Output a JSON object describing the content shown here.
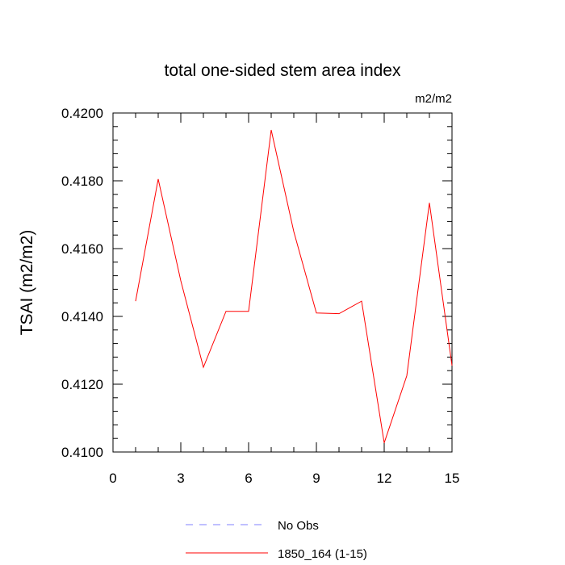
{
  "chart_data": {
    "type": "line",
    "title": "total one-sided stem area index",
    "units_label": "m2/m2",
    "xlabel": "",
    "ylabel": "TSAI  (m2/m2)",
    "xlim": [
      0,
      15
    ],
    "ylim": [
      0.41,
      0.42
    ],
    "x_ticks": [
      0,
      3,
      6,
      9,
      12,
      15
    ],
    "x_tick_labels": [
      "0",
      "3",
      "6",
      "9",
      "12",
      "15"
    ],
    "y_ticks": [
      0.41,
      0.412,
      0.414,
      0.416,
      0.418,
      0.42
    ],
    "y_tick_labels": [
      "0.4100",
      "0.4120",
      "0.4140",
      "0.4160",
      "0.4180",
      "0.4200"
    ],
    "grid": false,
    "legend_placement": "bottom",
    "series": [
      {
        "name": "No Obs",
        "color": "#8080ff",
        "dashed": true,
        "x": [],
        "y": []
      },
      {
        "name": "1850_164 (1-15)",
        "color": "#ff0000",
        "dashed": false,
        "x": [
          1,
          2,
          3,
          4,
          5,
          6,
          7,
          8,
          9,
          10,
          11,
          12,
          13,
          14,
          15
        ],
        "y": [
          0.41445,
          0.41805,
          0.41505,
          0.4125,
          0.41415,
          0.41415,
          0.4195,
          0.4165,
          0.4141,
          0.41408,
          0.41445,
          0.41027,
          0.41225,
          0.41735,
          0.41255
        ]
      }
    ]
  }
}
